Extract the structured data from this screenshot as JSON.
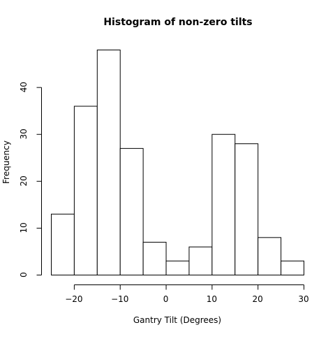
{
  "chart_data": {
    "type": "bar",
    "title": "Histogram of non-zero tilts",
    "xlabel": "Gantry Tilt (Degrees)",
    "ylabel": "Frequency",
    "bin_edges": [
      -25,
      -20,
      -15,
      -10,
      -5,
      0,
      5,
      10,
      15,
      20,
      25,
      30
    ],
    "values": [
      13,
      36,
      48,
      27,
      7,
      3,
      6,
      30,
      28,
      8,
      3
    ],
    "xlim": [
      -25,
      30
    ],
    "ylim": [
      0,
      48
    ],
    "xticks": [
      -20,
      -10,
      0,
      10,
      20,
      30
    ],
    "yticks": [
      0,
      10,
      20,
      30,
      40
    ],
    "grid": false,
    "colors": {
      "bar_fill": "#ffffff",
      "bar_stroke": "#000000"
    }
  }
}
